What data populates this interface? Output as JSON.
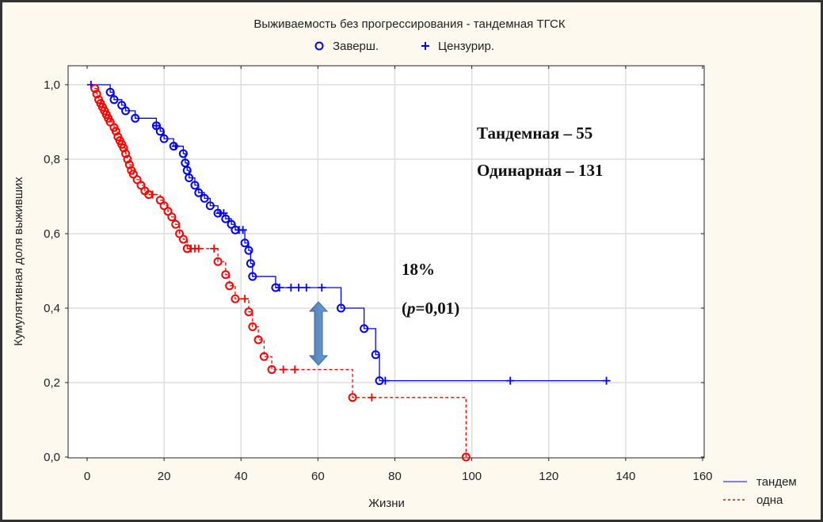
{
  "chart_data": {
    "type": "line",
    "subtype": "kaplan-meier",
    "title": "Выживаемость без прогрессирования - тандемная ТГСК",
    "top_legend": [
      {
        "label": "Заверш.",
        "marker": "circle",
        "color": "#0000ff"
      },
      {
        "label": "Цензурир.",
        "marker": "plus",
        "color": "#0000ff"
      }
    ],
    "xlabel": "Жизни",
    "ylabel": "Кумулятивная доля выживших",
    "xlim": [
      0,
      160
    ],
    "ylim": [
      0,
      1.0
    ],
    "xticks": [
      "0",
      "20",
      "40",
      "60",
      "80",
      "100",
      "120",
      "140",
      "160"
    ],
    "yticks": [
      "0,0",
      "0,2",
      "0,4",
      "0,6",
      "0,8",
      "1,0"
    ],
    "grid": true,
    "legend_position": "bottom-right",
    "series": [
      {
        "name": "тандем",
        "color": "#0000ff",
        "style": "solid",
        "events": [
          [
            6,
            0.98
          ],
          [
            7,
            0.96
          ],
          [
            9,
            0.945
          ],
          [
            10,
            0.93
          ],
          [
            12.5,
            0.91
          ],
          [
            18,
            0.89
          ],
          [
            19,
            0.875
          ],
          [
            20,
            0.855
          ],
          [
            22.5,
            0.835
          ],
          [
            25,
            0.815
          ],
          [
            25.5,
            0.79
          ],
          [
            26,
            0.77
          ],
          [
            26.5,
            0.75
          ],
          [
            28,
            0.73
          ],
          [
            29,
            0.71
          ],
          [
            30.5,
            0.695
          ],
          [
            32,
            0.675
          ],
          [
            34,
            0.655
          ],
          [
            36,
            0.64
          ],
          [
            37.5,
            0.625
          ],
          [
            38.5,
            0.61
          ],
          [
            41,
            0.575
          ],
          [
            42,
            0.555
          ],
          [
            42.5,
            0.52
          ],
          [
            43,
            0.485
          ],
          [
            49,
            0.455
          ],
          [
            66,
            0.4
          ],
          [
            72,
            0.345
          ],
          [
            75,
            0.275
          ],
          [
            76,
            0.205
          ]
        ],
        "censored": [
          1,
          18,
          23,
          34.5,
          35.5,
          39.5,
          40.5,
          50,
          53,
          55,
          57,
          61,
          77.5,
          110,
          135
        ],
        "end": 135
      },
      {
        "name": "одна",
        "color": "#ff0000",
        "style": "dashed",
        "events": [
          [
            2,
            0.99
          ],
          [
            2.5,
            0.975
          ],
          [
            3,
            0.96
          ],
          [
            3.5,
            0.95
          ],
          [
            4,
            0.94
          ],
          [
            4.5,
            0.93
          ],
          [
            5,
            0.92
          ],
          [
            5.5,
            0.91
          ],
          [
            6,
            0.9
          ],
          [
            7,
            0.885
          ],
          [
            7.5,
            0.875
          ],
          [
            8,
            0.86
          ],
          [
            8.5,
            0.85
          ],
          [
            9,
            0.84
          ],
          [
            9.5,
            0.83
          ],
          [
            10,
            0.815
          ],
          [
            10.5,
            0.8
          ],
          [
            11,
            0.785
          ],
          [
            11.5,
            0.77
          ],
          [
            12,
            0.76
          ],
          [
            13,
            0.745
          ],
          [
            14,
            0.73
          ],
          [
            15,
            0.715
          ],
          [
            16,
            0.705
          ],
          [
            19,
            0.69
          ],
          [
            20,
            0.675
          ],
          [
            21,
            0.66
          ],
          [
            22,
            0.645
          ],
          [
            23,
            0.625
          ],
          [
            24,
            0.6
          ],
          [
            25,
            0.585
          ],
          [
            26,
            0.56
          ],
          [
            34,
            0.525
          ],
          [
            36,
            0.49
          ],
          [
            37,
            0.46
          ],
          [
            38.5,
            0.425
          ],
          [
            42,
            0.39
          ],
          [
            43,
            0.35
          ],
          [
            44.5,
            0.315
          ],
          [
            46,
            0.27
          ],
          [
            48,
            0.235
          ],
          [
            69,
            0.16
          ],
          [
            98.5,
            0.0
          ]
        ],
        "censored": [
          17,
          27,
          28,
          29,
          33,
          41,
          51,
          54,
          74
        ],
        "end": 98.5
      }
    ],
    "annotations": {
      "tandem_count": "Тандемная – 55",
      "single_count": "Одинарная – 131",
      "diff_pct": "18%",
      "p_open": "(",
      "p_letter": "p",
      "p_rest": "=0,01)"
    }
  }
}
